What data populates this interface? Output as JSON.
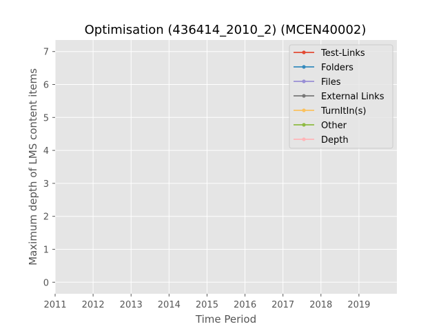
{
  "chart_data": {
    "type": "line",
    "title": "Optimisation (436414_2010_2) (MCEN40002)",
    "xlabel": "Time Period",
    "ylabel": "Maximum depth of LMS content items",
    "xlim": [
      2011,
      2020
    ],
    "ylim": [
      -0.35,
      7.35
    ],
    "x_ticks": [
      "2011",
      "2012",
      "2013",
      "2014",
      "2015",
      "2016",
      "2017",
      "2018",
      "2019"
    ],
    "y_ticks": [
      "0",
      "1",
      "2",
      "3",
      "4",
      "5",
      "6",
      "7"
    ],
    "grid": true,
    "legend_position": "top-right",
    "series": [
      {
        "name": "Test-Links",
        "color": "#E24A33",
        "values": []
      },
      {
        "name": "Folders",
        "color": "#348ABD",
        "values": []
      },
      {
        "name": "Files",
        "color": "#988ED5",
        "values": []
      },
      {
        "name": "External Links",
        "color": "#777777",
        "values": []
      },
      {
        "name": "TurnItIn(s)",
        "color": "#FBC15E",
        "values": []
      },
      {
        "name": "Other",
        "color": "#8EBA42",
        "values": []
      },
      {
        "name": "Depth",
        "color": "#FFB5B8",
        "values": []
      }
    ],
    "colors": {
      "plot_background": "#E5E5E5",
      "grid": "#FFFFFF",
      "tick_color": "#555555"
    }
  }
}
